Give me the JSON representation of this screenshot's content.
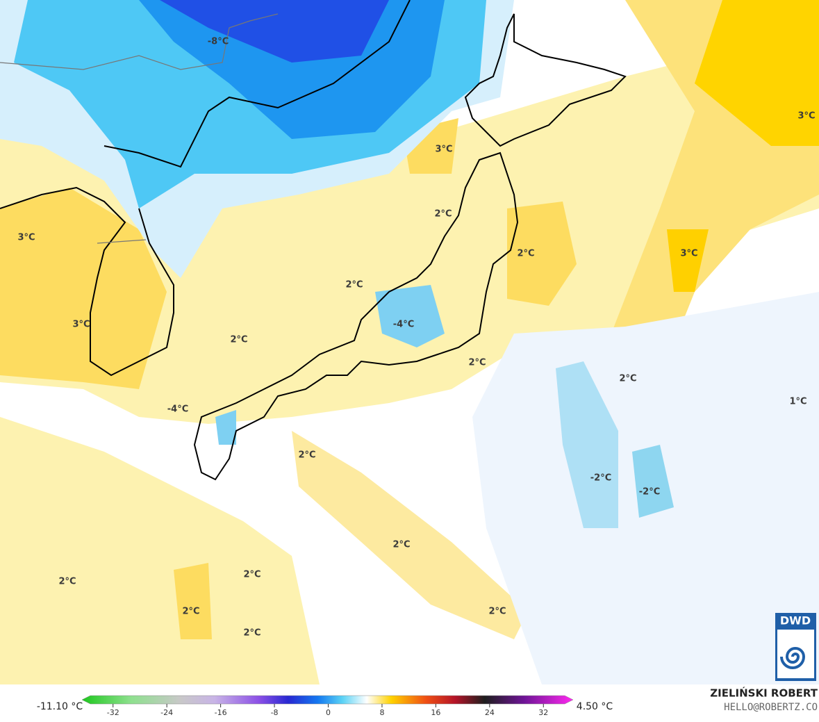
{
  "contour_labels": [
    "-8°C",
    "3°C",
    "3°C",
    "3°C",
    "2°C",
    "2°C",
    "3°C",
    "2°C",
    "3°C",
    "-4°C",
    "2°C",
    "2°C",
    "2°C",
    "1°C",
    "-4°C",
    "2°C",
    "-2°C",
    "-2°C",
    "2°C",
    "2°C",
    "2°C",
    "2°C",
    "2°C",
    "2°C"
  ],
  "legend": {
    "min_label": "-11.10 °C",
    "max_label": "4.50 °C",
    "range": [
      -36,
      36
    ],
    "ticks": [
      -32,
      -24,
      -16,
      -8,
      0,
      8,
      16,
      24,
      32
    ]
  },
  "credit": {
    "author": "ZIELIŃSKI ROBERT",
    "email": "HELLO@ROBERTZ.CO"
  },
  "logo": "DWD"
}
